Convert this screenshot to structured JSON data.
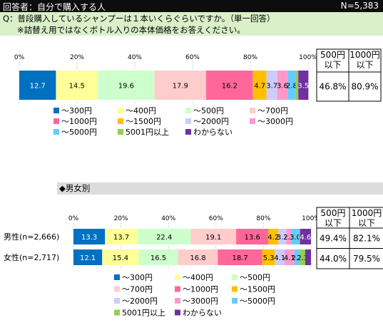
{
  "header": {
    "respondent": "回答者：自分で購入する人",
    "n_total": "N=5,383"
  },
  "question": {
    "line1": "Q：普段購入しているシャンプーは１本いくらぐらいですか。（単一回答）",
    "line2": "※詰替え用ではなくボトル入りの本体価格をお答えください。"
  },
  "section_title": "◆男女別",
  "stat_headers": [
    "500円以下",
    "1000円以下"
  ],
  "colors": [
    "#0070c0",
    "#ffff99",
    "#ccffcc",
    "#ffcccc",
    "#ff6699",
    "#ffc000",
    "#ccccff",
    "#ff99cc",
    "#66ccff",
    "#92d050",
    "#7030a0"
  ],
  "chart_data": [
    {
      "type": "bar",
      "orientation": "horizontal",
      "stacked": true,
      "xlim": [
        0,
        100
      ],
      "x_ticks": [
        "0%",
        "20%",
        "40%",
        "60%",
        "80%",
        "100%"
      ],
      "categories": [
        "～300円",
        "～400円",
        "～500円",
        "～700円",
        "～1000円",
        "～1500円",
        "～2000円",
        "～3000円",
        "～5000円",
        "5001円以上",
        "わからない"
      ],
      "series": [
        {
          "name": "",
          "values": [
            12.7,
            14.5,
            19.6,
            17.9,
            16.2,
            4.7,
            3.7,
            3.6,
            2.8,
            0.9,
            3.5
          ],
          "labels": [
            "12.7",
            "14.5",
            "19.6",
            "17.9",
            "16.2",
            "4.7",
            "3.7",
            "3.6",
            "2.8",
            "",
            "3.5"
          ],
          "summary": [
            "46.8%",
            "80.9%"
          ]
        }
      ]
    },
    {
      "type": "bar",
      "orientation": "horizontal",
      "stacked": true,
      "xlim": [
        0,
        100
      ],
      "x_ticks": [
        "0%",
        "20%",
        "40%",
        "60%",
        "80%",
        "100%"
      ],
      "categories": [
        "～300円",
        "～400円",
        "～500円",
        "～700円",
        "～1000円",
        "～1500円",
        "～2000円",
        "～3000円",
        "～5000円",
        "5001円以上",
        "わからない"
      ],
      "series": [
        {
          "name": "男性(n=2,666)",
          "values": [
            13.3,
            13.7,
            22.4,
            19.1,
            13.6,
            4.2,
            3.3,
            2.3,
            3.0,
            0.5,
            4.6
          ],
          "labels": [
            "13.3",
            "13.7",
            "22.4",
            "19.1",
            "13.6",
            "4.2",
            "3.3",
            "2.3",
            "3.0",
            "",
            "4.6"
          ],
          "summary": [
            "49.4%",
            "82.1%"
          ]
        },
        {
          "name": "女性(n=2,717)",
          "values": [
            12.1,
            15.4,
            16.5,
            16.8,
            18.7,
            5.3,
            4.1,
            4.1,
            2.3,
            2.3,
            2.4
          ],
          "labels": [
            "12.1",
            "15.4",
            "16.5",
            "16.8",
            "18.7",
            "5.3",
            "4.1",
            "4.1",
            "2.3",
            "2.3",
            ""
          ],
          "summary": [
            "44.0%",
            "79.5%"
          ]
        }
      ]
    }
  ]
}
